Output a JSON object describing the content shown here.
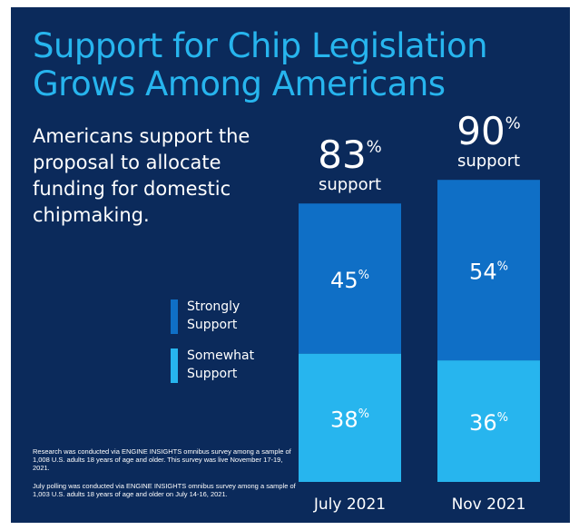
{
  "title": "Support for Chip Legislation Grows Among Americans",
  "subtitle": "Americans support the proposal to allocate funding for domestic chipmaking.",
  "legend": [
    {
      "label": "Strongly Support",
      "color": "#0f6fc6"
    },
    {
      "label": "Somewhat Support",
      "color": "#27b5ee"
    }
  ],
  "notes": [
    "Research was conducted via ENGINE INSIGHTS omnibus survey among a sample of 1,008 U.S. adults 18 years of age and older. This survey was live November 17-19, 2021.",
    "July polling was conducted via ENGINE INSIGHTS omnibus survey among a sample of 1,003 U.S. adults 18 years of age and older on July 14-16, 2021."
  ],
  "colors": {
    "background": "#0b2a5b",
    "accent": "#27b5ee",
    "strong": "#0f6fc6",
    "somewhat": "#27b5ee"
  },
  "chart_data": {
    "type": "bar",
    "stacked": true,
    "categories": [
      "July 2021",
      "Nov 2021"
    ],
    "series": [
      {
        "name": "Somewhat Support",
        "values": [
          38,
          36
        ]
      },
      {
        "name": "Strongly Support",
        "values": [
          45,
          54
        ]
      }
    ],
    "totals": [
      83,
      90
    ],
    "total_label": "support",
    "unit": "%",
    "ylim": [
      0,
      100
    ]
  }
}
